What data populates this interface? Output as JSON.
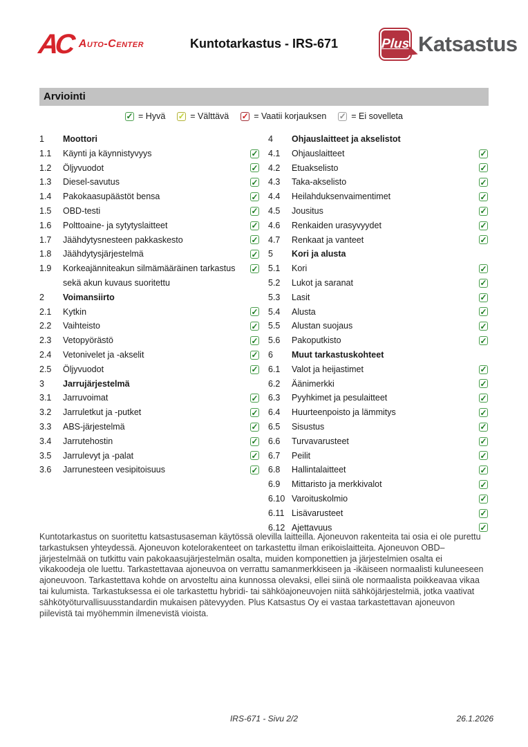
{
  "header": {
    "left_logo": {
      "mark": "AC",
      "name": "Auto-Center"
    },
    "title": "Kuntotarkastus - IRS-671",
    "right_logo": {
      "badge": "Plus",
      "name": "Katsastus"
    }
  },
  "section_title": "Arviointi",
  "legend": [
    {
      "status": "good",
      "label": "= Hyvä"
    },
    {
      "status": "fair",
      "label": "= Välttävä"
    },
    {
      "status": "repair",
      "label": "= Vaatii korjauksen"
    },
    {
      "status": "na",
      "label": "= Ei sovelleta"
    }
  ],
  "colors": {
    "good": "#4a9e4d",
    "fair": "#b2b13a",
    "repair": "#a02b33",
    "na": "#a2a2a2",
    "accent_red": "#d6242b",
    "logo_red": "#b43340",
    "logo_gray": "#57585a",
    "bar_gray": "#c2c2c2"
  },
  "checklist": {
    "left": [
      {
        "num": "1",
        "label": "Moottori",
        "status": "section"
      },
      {
        "num": "1.1",
        "label": "Käynti ja käynnistyvyys",
        "status": "good"
      },
      {
        "num": "1.2",
        "label": "Öljyvuodot",
        "status": "good"
      },
      {
        "num": "1.3",
        "label": "Diesel-savutus",
        "status": "good"
      },
      {
        "num": "1.4",
        "label": "Pakokaasupäästöt bensa",
        "status": "good"
      },
      {
        "num": "1.5",
        "label": "OBD-testi",
        "status": "good"
      },
      {
        "num": "1.6",
        "label": "Polttoaine- ja sytytyslaitteet",
        "status": "good"
      },
      {
        "num": "1.7",
        "label": "Jäähdytysnesteen pakkaskesto",
        "status": "good"
      },
      {
        "num": "1.8",
        "label": "Jäähdytysjärjestelmä",
        "status": "good"
      },
      {
        "num": "1.9",
        "label": "Korkeajänniteakun silmämääräinen tarkastus sekä akun kuvaus suoritettu",
        "status": "good"
      },
      {
        "num": "2",
        "label": "Voimansiirto",
        "status": "section"
      },
      {
        "num": "2.1",
        "label": "Kytkin",
        "status": "good"
      },
      {
        "num": "2.2",
        "label": "Vaihteisto",
        "status": "good"
      },
      {
        "num": "2.3",
        "label": "Vetopyörästö",
        "status": "good"
      },
      {
        "num": "2.4",
        "label": "Vetonivelet ja -akselit",
        "status": "good"
      },
      {
        "num": "2.5",
        "label": "Öljyvuodot",
        "status": "good"
      },
      {
        "num": "3",
        "label": "Jarrujärjestelmä",
        "status": "section"
      },
      {
        "num": "3.1",
        "label": "Jarruvoimat",
        "status": "good"
      },
      {
        "num": "3.2",
        "label": "Jarruletkut ja -putket",
        "status": "good"
      },
      {
        "num": "3.3",
        "label": "ABS-järjestelmä",
        "status": "good"
      },
      {
        "num": "3.4",
        "label": "Jarrutehostin",
        "status": "good"
      },
      {
        "num": "3.5",
        "label": "Jarrulevyt ja -palat",
        "status": "good"
      },
      {
        "num": "3.6",
        "label": "Jarrunesteen vesipitoisuus",
        "status": "good"
      }
    ],
    "right": [
      {
        "num": "4",
        "label": "Ohjauslaitteet ja akselistot",
        "status": "section"
      },
      {
        "num": "4.1",
        "label": "Ohjauslaitteet",
        "status": "good"
      },
      {
        "num": "4.2",
        "label": "Etuakselisto",
        "status": "good"
      },
      {
        "num": "4.3",
        "label": "Taka-akselisto",
        "status": "good"
      },
      {
        "num": "4.4",
        "label": "Heilahduksenvaimentimet",
        "status": "good"
      },
      {
        "num": "4.5",
        "label": "Jousitus",
        "status": "good"
      },
      {
        "num": "4.6",
        "label": "Renkaiden urasyvyydet",
        "status": "good"
      },
      {
        "num": "4.7",
        "label": "Renkaat ja vanteet",
        "status": "good"
      },
      {
        "num": "5",
        "label": "Kori ja alusta",
        "status": "section"
      },
      {
        "num": "5.1",
        "label": "Kori",
        "status": "good"
      },
      {
        "num": "5.2",
        "label": "Lukot ja saranat",
        "status": "good"
      },
      {
        "num": "5.3",
        "label": "Lasit",
        "status": "good"
      },
      {
        "num": "5.4",
        "label": "Alusta",
        "status": "good"
      },
      {
        "num": "5.5",
        "label": "Alustan suojaus",
        "status": "good"
      },
      {
        "num": "5.6",
        "label": "Pakoputkisto",
        "status": "good"
      },
      {
        "num": "6",
        "label": "Muut tarkastuskohteet",
        "status": "section"
      },
      {
        "num": "6.1",
        "label": "Valot ja heijastimet",
        "status": "good"
      },
      {
        "num": "6.2",
        "label": "Äänimerkki",
        "status": "good"
      },
      {
        "num": "6.3",
        "label": "Pyyhkimet ja pesulaitteet",
        "status": "good"
      },
      {
        "num": "6.4",
        "label": "Huurteenpoisto ja lämmitys",
        "status": "good"
      },
      {
        "num": "6.5",
        "label": "Sisustus",
        "status": "good"
      },
      {
        "num": "6.6",
        "label": "Turvavarusteet",
        "status": "good"
      },
      {
        "num": "6.7",
        "label": "Peilit",
        "status": "good"
      },
      {
        "num": "6.8",
        "label": "Hallintalaitteet",
        "status": "good"
      },
      {
        "num": "6.9",
        "label": "Mittaristo ja merkkivalot",
        "status": "good"
      },
      {
        "num": "6.10",
        "label": "Varoituskolmio",
        "status": "good"
      },
      {
        "num": "6.11",
        "label": "Lisävarusteet",
        "status": "good"
      },
      {
        "num": "6.12",
        "label": "Ajettavuus",
        "status": "good"
      }
    ]
  },
  "disclaimer": "Kuntotarkastus on suoritettu katsastusaseman käytössä olevilla laitteilla. Ajoneuvon rakenteita tai osia ei ole purettu tarkastuksen yhteydessä. Ajoneuvon kotelorakenteet on tarkastettu ilman erikoislaitteita. Ajoneuvon OBD–järjestelmää on tutkittu vain pakokaasujärjestelmän osalta, muiden komponettien ja järjestelmien osalta ei vikakoodeja ole luettu. Tarkastettavaa ajoneuvoa on verrattu samanmerkkiseen ja -ikäiseen normaalisti kuluneeseen ajoneuvoon. Tarkastettava kohde on arvosteltu aina kunnossa olevaksi, ellei siinä ole normaalista poikkeavaa vikaa tai kulumista. Tarkastuksessa ei ole tarkastettu hybridi- tai sähköajoneuvojen niitä sähköjärjestelmiä, jotka vaativat sähkötyöturvallisuusstandardin mukaisen pätevyyden. Plus Katsastus Oy ei vastaa tarkastettavan ajoneuvon piilevistä tai myöhemmin ilmenevistä vioista.",
  "footer": {
    "center": "IRS-671 - Sivu 2/2",
    "right": "26.1.2026"
  }
}
